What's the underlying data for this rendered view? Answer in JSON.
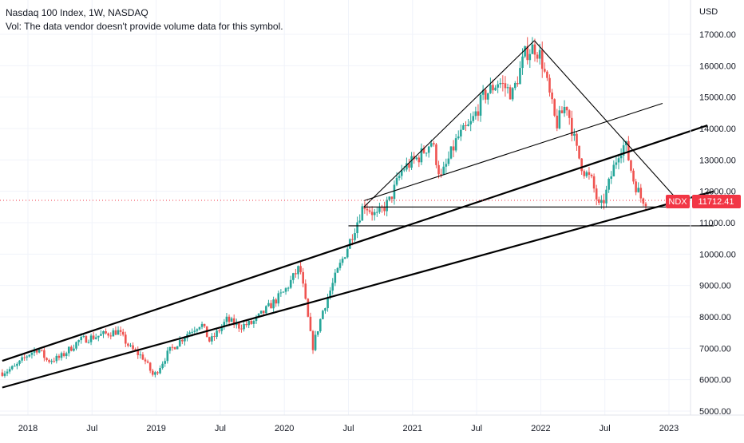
{
  "header": {
    "title": "Nasdaq 100 Index, 1W, NASDAQ",
    "vol_note": "Vol: The data vendor doesn't provide volume data for this symbol."
  },
  "price_axis": {
    "currency": "USD",
    "last_label": "11712.41",
    "symbol_label": "NDX"
  },
  "colors": {
    "up": "#26a69a",
    "down": "#ef5350",
    "trendline": "#000000",
    "last_price": "#f23645",
    "grid": "#f0f3fa"
  },
  "chart_data": {
    "type": "candlestick",
    "title": "Nasdaq 100 Index, 1W, NASDAQ",
    "xlabel": "",
    "ylabel": "",
    "ylim": [
      4800,
      17500
    ],
    "x_ticks": [
      {
        "label": "2018",
        "t": 2018.0
      },
      {
        "label": "Jul",
        "t": 2018.5
      },
      {
        "label": "2019",
        "t": 2019.0
      },
      {
        "label": "Jul",
        "t": 2019.5
      },
      {
        "label": "2020",
        "t": 2020.0
      },
      {
        "label": "Jul",
        "t": 2020.5
      },
      {
        "label": "2021",
        "t": 2021.0
      },
      {
        "label": "Jul",
        "t": 2021.5
      },
      {
        "label": "2022",
        "t": 2022.0
      },
      {
        "label": "Jul",
        "t": 2022.5
      },
      {
        "label": "2023",
        "t": 2023.0
      }
    ],
    "y_ticks": [
      5000,
      6000,
      7000,
      8000,
      9000,
      10000,
      11000,
      12000,
      13000,
      14000,
      15000,
      16000,
      17000
    ],
    "y_tick_labels": [
      "5000.00",
      "6000.00",
      "7000.00",
      "8000.00",
      "9000.00",
      "10000.00",
      "11000.00",
      "12000.00",
      "13000.00",
      "14000.00",
      "15000.00",
      "16000.00",
      "17000.00"
    ],
    "x_range": [
      2017.8,
      2023.35
    ],
    "last_price": 11712.41,
    "price_path": [
      [
        2017.8,
        6230
      ],
      [
        2017.9,
        6400
      ],
      [
        2018.0,
        6800
      ],
      [
        2018.08,
        7000
      ],
      [
        2018.15,
        6600
      ],
      [
        2018.25,
        6700
      ],
      [
        2018.4,
        7250
      ],
      [
        2018.55,
        7400
      ],
      [
        2018.7,
        7550
      ],
      [
        2018.8,
        7000
      ],
      [
        2018.9,
        6700
      ],
      [
        2018.98,
        6100
      ],
      [
        2019.1,
        6900
      ],
      [
        2019.25,
        7500
      ],
      [
        2019.35,
        7800
      ],
      [
        2019.42,
        7200
      ],
      [
        2019.55,
        7900
      ],
      [
        2019.65,
        7700
      ],
      [
        2019.75,
        7800
      ],
      [
        2019.9,
        8400
      ],
      [
        2020.0,
        8800
      ],
      [
        2020.12,
        9600
      ],
      [
        2020.16,
        8600
      ],
      [
        2020.22,
        7000
      ],
      [
        2020.3,
        8200
      ],
      [
        2020.4,
        9300
      ],
      [
        2020.5,
        10300
      ],
      [
        2020.62,
        11600
      ],
      [
        2020.72,
        11200
      ],
      [
        2020.82,
        11700
      ],
      [
        2020.92,
        12700
      ],
      [
        2021.05,
        13100
      ],
      [
        2021.15,
        13600
      ],
      [
        2021.22,
        12400
      ],
      [
        2021.35,
        13700
      ],
      [
        2021.45,
        14100
      ],
      [
        2021.55,
        15000
      ],
      [
        2021.67,
        15500
      ],
      [
        2021.78,
        15100
      ],
      [
        2021.88,
        16400
      ],
      [
        2021.95,
        16600
      ],
      [
        2022.0,
        16300
      ],
      [
        2022.05,
        15400
      ],
      [
        2022.12,
        14100
      ],
      [
        2022.2,
        14800
      ],
      [
        2022.28,
        13300
      ],
      [
        2022.33,
        12700
      ],
      [
        2022.4,
        12300
      ],
      [
        2022.46,
        11400
      ],
      [
        2022.5,
        11800
      ],
      [
        2022.55,
        12500
      ],
      [
        2022.61,
        13300
      ],
      [
        2022.66,
        13500
      ],
      [
        2022.72,
        12400
      ],
      [
        2022.78,
        11800
      ],
      [
        2022.82,
        11712
      ]
    ],
    "trendlines": [
      {
        "t1": 2017.8,
        "p1": 6600,
        "t2": 2023.3,
        "p2": 14100
      },
      {
        "t1": 2017.8,
        "p1": 5750,
        "t2": 2023.35,
        "p2": 12000
      },
      {
        "t1": 2020.62,
        "p1": 11500,
        "t2": 2021.95,
        "p2": 16800
      },
      {
        "t1": 2021.95,
        "p1": 16800,
        "t2": 2023.05,
        "p2": 11800
      },
      {
        "t1": 2020.62,
        "p1": 11700,
        "t2": 2022.95,
        "p2": 14800
      },
      {
        "t1": 2020.5,
        "p1": 10900,
        "t2": 2023.35,
        "p2": 10900
      },
      {
        "t1": 2020.62,
        "p1": 11500,
        "t2": 2022.98,
        "p2": 11500
      }
    ]
  }
}
